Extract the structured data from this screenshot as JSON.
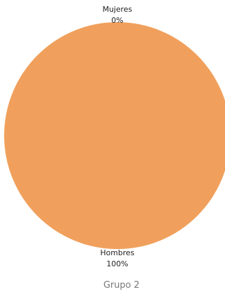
{
  "chart_data": {
    "type": "pie",
    "title": "Grupo 2",
    "slices": [
      {
        "label": "Mujeres",
        "value": 0,
        "value_label": "0%",
        "color": "#f0a05c"
      },
      {
        "label": "Hombres",
        "value": 100,
        "value_label": "100%",
        "color": "#f0a05c"
      }
    ]
  }
}
